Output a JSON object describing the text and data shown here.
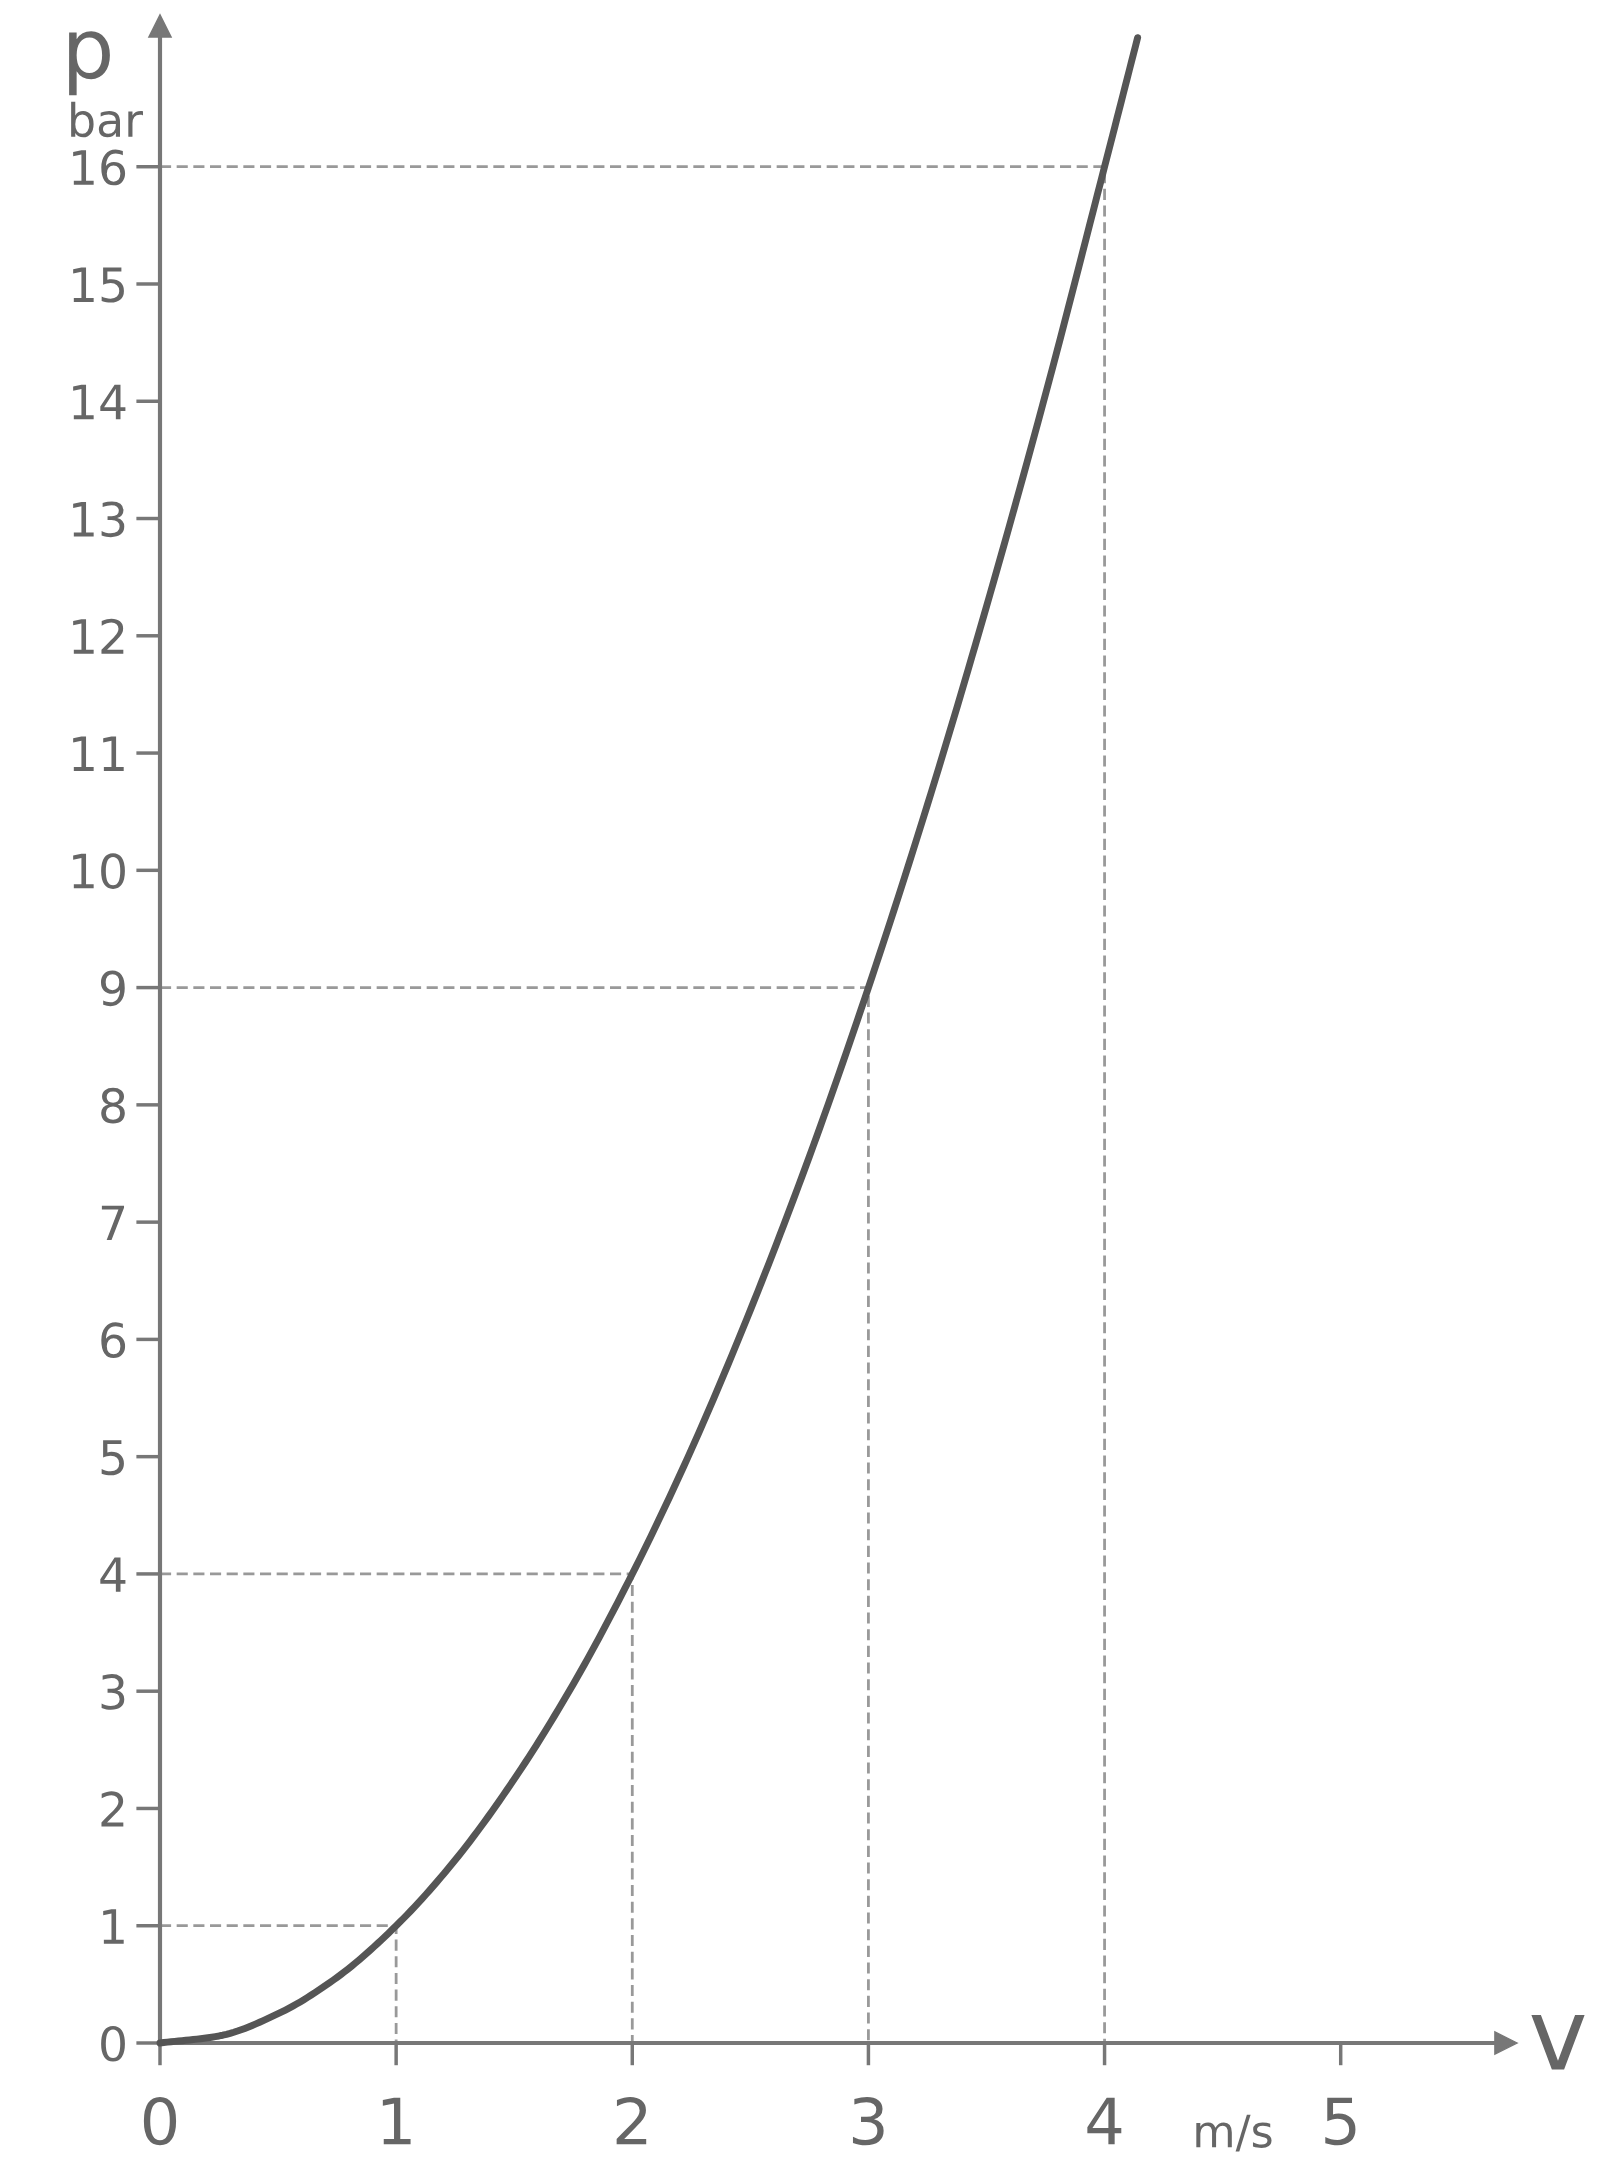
{
  "chart_data": {
    "type": "line",
    "xlabel": "v",
    "ylabel": "p",
    "annotations": [
      "bar",
      "m/s"
    ],
    "xlim": [
      0,
      5.7
    ],
    "ylim": [
      0,
      17.2
    ],
    "xticks": [
      0,
      1,
      2,
      3,
      4,
      5
    ],
    "yticks": [
      0,
      1,
      2,
      3,
      4,
      5,
      6,
      7,
      8,
      9,
      10,
      11,
      12,
      13,
      14,
      15,
      16
    ],
    "series": [
      {
        "color": "#555555",
        "line_style": "solid",
        "x": [
          0,
          0.25,
          0.5,
          0.75,
          1,
          1.25,
          1.5,
          1.75,
          2,
          2.25,
          2.5,
          2.75,
          3,
          3.25,
          3.5,
          3.75,
          4,
          4.14
        ],
        "values": [
          0,
          0.06,
          0.25,
          0.56,
          1,
          1.56,
          2.25,
          3.06,
          4,
          5.06,
          6.25,
          7.56,
          9,
          10.56,
          12.25,
          14.06,
          16,
          17.1
        ]
      },
      {
        "color": "#999999",
        "line_style": "dashed",
        "x": [
          0,
          1,
          1
        ],
        "values": [
          1,
          1,
          0
        ]
      },
      {
        "color": "#999999",
        "line_style": "dashed",
        "x": [
          0,
          2,
          2
        ],
        "values": [
          4,
          4,
          0
        ]
      },
      {
        "color": "#999999",
        "line_style": "dashed",
        "x": [
          0,
          3,
          3
        ],
        "values": [
          9,
          9,
          0
        ]
      },
      {
        "color": "#999999",
        "line_style": "dashed",
        "x": [
          0,
          4,
          4
        ],
        "values": [
          16,
          16,
          0
        ]
      }
    ]
  }
}
